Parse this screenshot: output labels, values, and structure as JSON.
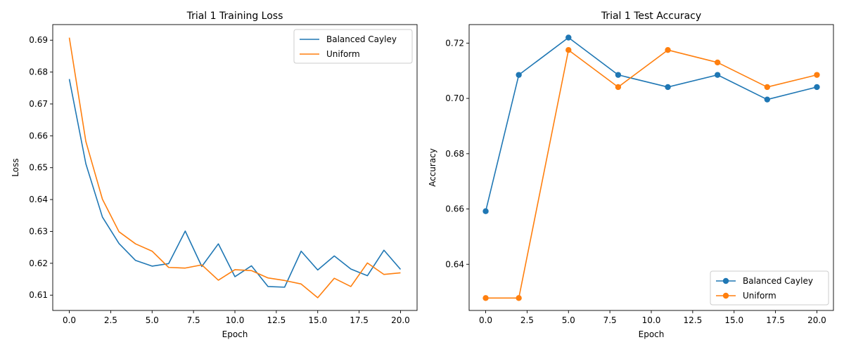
{
  "chart_data": [
    {
      "type": "line",
      "title": "Trial 1 Training Loss",
      "xlabel": "Epoch",
      "ylabel": "Loss",
      "xlim": [
        -1.0,
        21.0
      ],
      "ylim": [
        0.6052,
        0.6949
      ],
      "xticks": [
        0.0,
        2.5,
        5.0,
        7.5,
        10.0,
        12.5,
        15.0,
        17.5,
        20.0
      ],
      "xtick_labels": [
        "0.0",
        "2.5",
        "5.0",
        "7.5",
        "10.0",
        "12.5",
        "15.0",
        "17.5",
        "20.0"
      ],
      "yticks": [
        0.61,
        0.62,
        0.63,
        0.64,
        0.65,
        0.66,
        0.67,
        0.68,
        0.69
      ],
      "ytick_labels": [
        "0.61",
        "0.62",
        "0.63",
        "0.64",
        "0.65",
        "0.66",
        "0.67",
        "0.68",
        "0.69"
      ],
      "grid": false,
      "legend_position": "top-right",
      "markers": false,
      "x": [
        0,
        1,
        2,
        3,
        4,
        5,
        6,
        7,
        8,
        9,
        10,
        11,
        12,
        13,
        14,
        15,
        16,
        17,
        18,
        19,
        20
      ],
      "series": [
        {
          "name": "Balanced Cayley",
          "color": "#1f77b4",
          "values": [
            0.6778,
            0.6512,
            0.6345,
            0.6262,
            0.6209,
            0.6191,
            0.6199,
            0.6301,
            0.619,
            0.6261,
            0.6158,
            0.6192,
            0.6127,
            0.6125,
            0.6238,
            0.6179,
            0.6223,
            0.6182,
            0.6161,
            0.6241,
            0.6181
          ]
        },
        {
          "name": "Uniform",
          "color": "#ff7f0e",
          "values": [
            0.6908,
            0.6582,
            0.6401,
            0.6299,
            0.6261,
            0.6238,
            0.6187,
            0.6185,
            0.6195,
            0.6147,
            0.618,
            0.6177,
            0.6154,
            0.6146,
            0.6135,
            0.6092,
            0.6153,
            0.6127,
            0.6201,
            0.6165,
            0.617
          ]
        }
      ]
    },
    {
      "type": "line",
      "title": "Trial 1 Test Accuracy",
      "xlabel": "Epoch",
      "ylabel": "Accuracy",
      "xlim": [
        -1.0,
        21.0
      ],
      "ylim": [
        0.6233,
        0.7267
      ],
      "xticks": [
        0.0,
        2.5,
        5.0,
        7.5,
        10.0,
        12.5,
        15.0,
        17.5,
        20.0
      ],
      "xtick_labels": [
        "0.0",
        "2.5",
        "5.0",
        "7.5",
        "10.0",
        "12.5",
        "15.0",
        "17.5",
        "20.0"
      ],
      "yticks": [
        0.64,
        0.66,
        0.68,
        0.7,
        0.72
      ],
      "ytick_labels": [
        "0.64",
        "0.66",
        "0.68",
        "0.70",
        "0.72"
      ],
      "grid": false,
      "legend_position": "bottom-right",
      "markers": true,
      "x": [
        0,
        2,
        5,
        8,
        11,
        14,
        17,
        20
      ],
      "series": [
        {
          "name": "Balanced Cayley",
          "color": "#1f77b4",
          "values": [
            0.6592,
            0.7085,
            0.722,
            0.7085,
            0.7041,
            0.7085,
            0.6996,
            0.7041
          ]
        },
        {
          "name": "Uniform",
          "color": "#ff7f0e",
          "values": [
            0.6278,
            0.6278,
            0.7175,
            0.7041,
            0.7175,
            0.713,
            0.7041,
            0.7085
          ]
        }
      ]
    }
  ]
}
